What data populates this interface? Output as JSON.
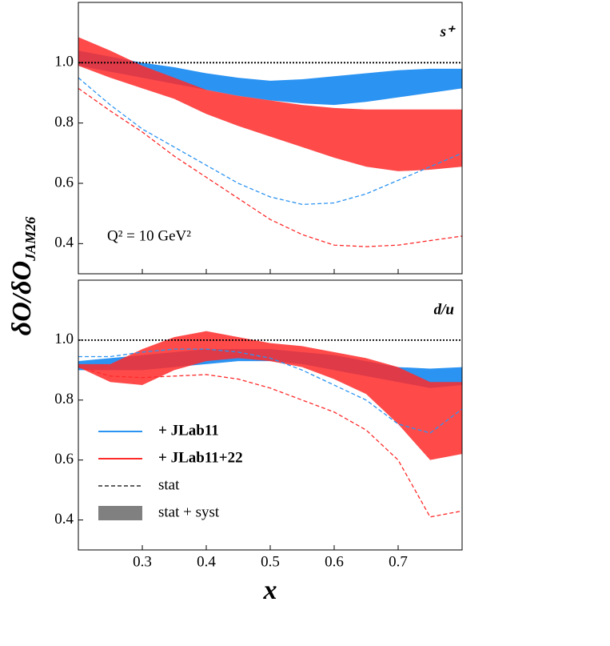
{
  "ylabel": {
    "main": "δO/δO",
    "sub": "JAM26"
  },
  "xlabel": "x",
  "chart_data": [
    {
      "type": "band",
      "panel_label": "s⁺",
      "annotation": "Q² = 10 GeV²",
      "x": [
        0.2,
        0.25,
        0.3,
        0.35,
        0.4,
        0.45,
        0.5,
        0.55,
        0.6,
        0.65,
        0.7,
        0.75,
        0.8
      ],
      "xlim": [
        0.2,
        0.8
      ],
      "ylim": [
        0.3,
        1.2
      ],
      "xticks": [
        0.3,
        0.4,
        0.5,
        0.6,
        0.7
      ],
      "xtick_labels": false,
      "yticks": [
        {
          "value": 0.4,
          "label": "0.4"
        },
        {
          "value": 0.6,
          "label": "0.6"
        },
        {
          "value": 0.8,
          "label": "0.8"
        },
        {
          "value": 1.0,
          "label": "1.0"
        }
      ],
      "hline": 1,
      "series": [
        {
          "name": "+ JLab11",
          "color": "#2b93f2",
          "lower": [
            0.99,
            0.97,
            0.95,
            0.93,
            0.91,
            0.89,
            0.875,
            0.865,
            0.86,
            0.87,
            0.885,
            0.9,
            0.915
          ],
          "upper": [
            1.04,
            1.02,
            1.0,
            0.985,
            0.965,
            0.95,
            0.94,
            0.945,
            0.955,
            0.965,
            0.975,
            0.98,
            0.98
          ],
          "stat": [
            0.95,
            0.86,
            0.78,
            0.72,
            0.66,
            0.6,
            0.555,
            0.53,
            0.535,
            0.565,
            0.61,
            0.655,
            0.7
          ]
        },
        {
          "name": "+ JLab11+22",
          "color": "#ff2a2a",
          "lower": [
            0.99,
            0.95,
            0.915,
            0.88,
            0.83,
            0.79,
            0.755,
            0.72,
            0.685,
            0.655,
            0.64,
            0.645,
            0.655
          ],
          "upper": [
            1.085,
            1.04,
            0.99,
            0.95,
            0.91,
            0.89,
            0.875,
            0.86,
            0.85,
            0.845,
            0.845,
            0.845,
            0.845
          ],
          "stat": [
            0.915,
            0.84,
            0.77,
            0.69,
            0.62,
            0.55,
            0.48,
            0.43,
            0.395,
            0.39,
            0.395,
            0.41,
            0.425
          ]
        }
      ]
    },
    {
      "type": "band",
      "panel_label": "d/u",
      "x": [
        0.2,
        0.25,
        0.3,
        0.35,
        0.4,
        0.45,
        0.5,
        0.55,
        0.6,
        0.65,
        0.7,
        0.75,
        0.8
      ],
      "xlim": [
        0.2,
        0.8
      ],
      "ylim": [
        0.3,
        1.2
      ],
      "xticks": [
        0.3,
        0.4,
        0.5,
        0.6,
        0.7
      ],
      "xtick_labels": true,
      "yticks": [
        {
          "value": 0.4,
          "label": "0.4"
        },
        {
          "value": 0.6,
          "label": "0.6"
        },
        {
          "value": 0.8,
          "label": "0.8"
        },
        {
          "value": 1.0,
          "label": "1.0"
        }
      ],
      "hline": 1,
      "legend": "lower left",
      "stat_label": "stat",
      "band_label": "stat + syst",
      "series": [
        {
          "name": "+ JLab11",
          "color": "#2b93f2",
          "lower": [
            0.9,
            0.9,
            0.9,
            0.91,
            0.92,
            0.93,
            0.93,
            0.92,
            0.9,
            0.88,
            0.86,
            0.84,
            0.85
          ],
          "upper": [
            0.93,
            0.94,
            0.95,
            0.96,
            0.97,
            0.97,
            0.97,
            0.96,
            0.95,
            0.93,
            0.91,
            0.905,
            0.91
          ],
          "stat": [
            0.945,
            0.945,
            0.96,
            0.97,
            0.97,
            0.96,
            0.94,
            0.9,
            0.85,
            0.8,
            0.72,
            0.69,
            0.77
          ]
        },
        {
          "name": "+ JLab11+22",
          "color": "#ff2a2a",
          "lower": [
            0.91,
            0.86,
            0.85,
            0.9,
            0.93,
            0.94,
            0.93,
            0.91,
            0.87,
            0.82,
            0.72,
            0.6,
            0.62
          ],
          "upper": [
            0.92,
            0.92,
            0.97,
            1.01,
            1.03,
            1.01,
            0.99,
            0.98,
            0.96,
            0.94,
            0.91,
            0.86,
            0.86
          ],
          "stat": [
            0.91,
            0.88,
            0.875,
            0.88,
            0.885,
            0.87,
            0.84,
            0.8,
            0.76,
            0.7,
            0.6,
            0.41,
            0.43
          ]
        }
      ]
    }
  ]
}
